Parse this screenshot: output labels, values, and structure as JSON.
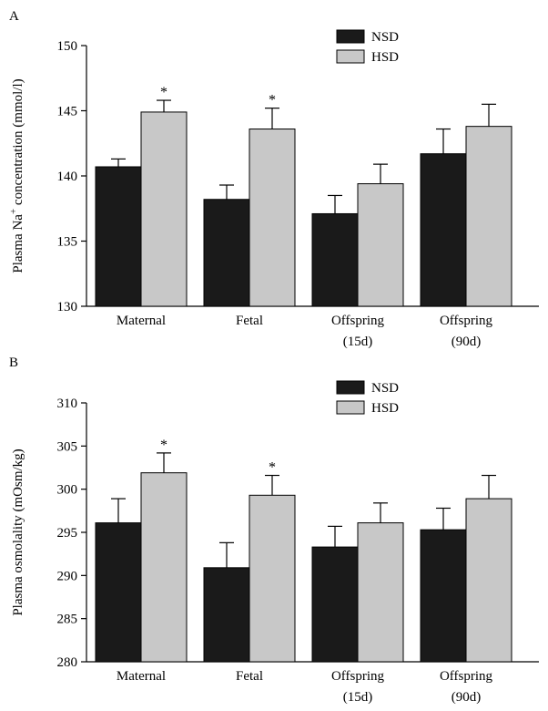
{
  "colors": {
    "nsd": "#1a1a1a",
    "hsd": "#c8c8c8",
    "edge": "#000000"
  },
  "chart_data": [
    {
      "type": "bar",
      "panel_label": "A",
      "ylabel_pre": "Plasma Na",
      "ylabel_sup": "+",
      "ylabel_post": " concentration (mmol/l)",
      "xlabel": "",
      "ylim": [
        130,
        150
      ],
      "yticks": [
        130,
        135,
        140,
        145,
        150
      ],
      "categories": [
        [
          "Maternal"
        ],
        [
          "Fetal"
        ],
        [
          "Offspring",
          "(15d)"
        ],
        [
          "Offspring",
          "(90d)"
        ]
      ],
      "series": [
        {
          "name": "NSD",
          "values": [
            140.7,
            138.2,
            137.1,
            141.7
          ],
          "errors": [
            0.6,
            1.1,
            1.4,
            1.9
          ]
        },
        {
          "name": "HSD",
          "values": [
            144.9,
            143.6,
            139.4,
            143.8
          ],
          "errors": [
            0.9,
            1.6,
            1.5,
            1.7
          ]
        }
      ],
      "annotations": [
        {
          "category": "Maternal",
          "series": "HSD",
          "text": "*"
        },
        {
          "category": "Fetal",
          "series": "HSD",
          "text": "*"
        }
      ],
      "legend_position": "top-center"
    },
    {
      "type": "bar",
      "panel_label": "B",
      "ylabel_pre": "Plasma osmolality (mOsm/kg)",
      "ylabel_sup": "",
      "ylabel_post": "",
      "xlabel": "",
      "ylim": [
        280,
        310
      ],
      "yticks": [
        280,
        285,
        290,
        295,
        300,
        305,
        310
      ],
      "categories": [
        [
          "Maternal"
        ],
        [
          "Fetal"
        ],
        [
          "Offspring",
          "(15d)"
        ],
        [
          "Offspring",
          "(90d)"
        ]
      ],
      "series": [
        {
          "name": "NSD",
          "values": [
            296.1,
            290.9,
            293.3,
            295.3
          ],
          "errors": [
            2.8,
            2.9,
            2.4,
            2.5
          ]
        },
        {
          "name": "HSD",
          "values": [
            301.9,
            299.3,
            296.1,
            298.9
          ],
          "errors": [
            2.3,
            2.3,
            2.3,
            2.7
          ]
        }
      ],
      "annotations": [
        {
          "category": "Maternal",
          "series": "HSD",
          "text": "*"
        },
        {
          "category": "Fetal",
          "series": "HSD",
          "text": "*"
        }
      ],
      "legend_position": "top-center"
    }
  ]
}
